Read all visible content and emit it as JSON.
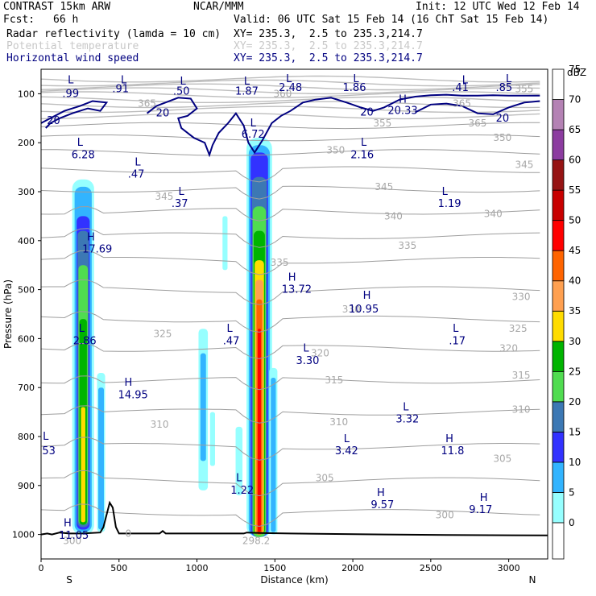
{
  "header": {
    "model": "CONTRAST 15km ARW",
    "org": "NCAR/MMM",
    "init": "Init: 12 UTC Wed 12 Feb 14",
    "fcst_label": "Fcst:",
    "fcst_value": "66 h",
    "valid": "Valid: 06 UTC Sat 15 Feb 14 (16 ChT Sat 15 Feb 14)",
    "fields": [
      {
        "name": "Radar reflectivity (lamda = 10 cm)",
        "xy": "XY= 235.3,  2.5 to 235.3,214.7",
        "color": "#000000"
      },
      {
        "name": "Potential temperature",
        "xy": "XY= 235.3,  2.5 to 235.3,214.7",
        "color": "#c8c8c8"
      },
      {
        "name": "Horizontal wind speed",
        "xy": "XY= 235.3,  2.5 to 235.3,214.7",
        "color": "#000080"
      }
    ]
  },
  "chart_data": {
    "type": "cross-section",
    "xlabel": "Distance (km)",
    "ylabel": "Pressure (hPa)",
    "xlim": [
      0,
      3250
    ],
    "ylim": [
      1050,
      50
    ],
    "x_ticks": [
      0,
      500,
      1000,
      1500,
      2000,
      2500,
      3000
    ],
    "y_ticks": [
      100,
      200,
      300,
      400,
      500,
      600,
      700,
      800,
      900,
      1000
    ],
    "x_end_labels": {
      "left": "S",
      "right": "N"
    },
    "colorbar": {
      "unit": "dBZ",
      "levels": [
        0,
        5,
        10,
        15,
        20,
        25,
        30,
        35,
        40,
        45,
        50,
        55,
        60,
        65,
        70,
        75
      ],
      "colors": [
        "#ffffff",
        "#96ffff",
        "#32b4ff",
        "#3232ff",
        "#3c78b4",
        "#50dc50",
        "#00b400",
        "#ffdc00",
        "#ffa050",
        "#ff6400",
        "#ff0000",
        "#c80000",
        "#961414",
        "#8c3ca0",
        "#b482b4",
        "#ffffff"
      ]
    },
    "theta_labels": [
      {
        "v": "365",
        "x": 680,
        "p": 120
      },
      {
        "v": "365",
        "x": 2700,
        "p": 120
      },
      {
        "v": "360",
        "x": 1550,
        "p": 100
      },
      {
        "v": "355",
        "x": 2190,
        "p": 160
      },
      {
        "v": "355",
        "x": 3100,
        "p": 90
      },
      {
        "v": "365",
        "x": 2800,
        "p": 160
      },
      {
        "v": "350",
        "x": 2960,
        "p": 190
      },
      {
        "v": "350",
        "x": 1890,
        "p": 215
      },
      {
        "v": "345",
        "x": 3100,
        "p": 245
      },
      {
        "v": "345",
        "x": 2200,
        "p": 290
      },
      {
        "v": "345",
        "x": 790,
        "p": 310
      },
      {
        "v": "340",
        "x": 2260,
        "p": 350
      },
      {
        "v": "340",
        "x": 2900,
        "p": 345
      },
      {
        "v": "335",
        "x": 2350,
        "p": 410
      },
      {
        "v": "335",
        "x": 1530,
        "p": 445
      },
      {
        "v": "330",
        "x": 3080,
        "p": 515
      },
      {
        "v": "330",
        "x": 1990,
        "p": 540
      },
      {
        "v": "325",
        "x": 3060,
        "p": 580
      },
      {
        "v": "325",
        "x": 780,
        "p": 590
      },
      {
        "v": "320",
        "x": 3000,
        "p": 620
      },
      {
        "v": "320",
        "x": 1790,
        "p": 630
      },
      {
        "v": "315",
        "x": 3080,
        "p": 675
      },
      {
        "v": "315",
        "x": 1880,
        "p": 685
      },
      {
        "v": "310",
        "x": 3080,
        "p": 745
      },
      {
        "v": "310",
        "x": 1910,
        "p": 770
      },
      {
        "v": "310",
        "x": 760,
        "p": 775
      },
      {
        "v": "305",
        "x": 2960,
        "p": 845
      },
      {
        "v": "305",
        "x": 1820,
        "p": 885
      },
      {
        "v": "300",
        "x": 2590,
        "p": 960
      },
      {
        "v": "300",
        "x": 200,
        "p": 1013
      },
      {
        "v": "298.2",
        "x": 1380,
        "p": 1013
      },
      {
        "v": "0",
        "x": 560,
        "p": 998
      }
    ],
    "wind_labels": [
      {
        "v": ".99",
        "x": 190,
        "p": 100
      },
      {
        "v": ".91",
        "x": 510,
        "p": 90
      },
      {
        "v": ".50",
        "x": 900,
        "p": 95
      },
      {
        "v": "1.87",
        "x": 1320,
        "p": 95
      },
      {
        "v": "2.48",
        "x": 1600,
        "p": 88
      },
      {
        "v": "1.86",
        "x": 2010,
        "p": 88
      },
      {
        "v": ".41",
        "x": 2690,
        "p": 88
      },
      {
        "v": ".85",
        "x": 2970,
        "p": 88
      },
      {
        "v": "20",
        "x": 80,
        "p": 155
      },
      {
        "v": "20",
        "x": 780,
        "p": 140
      },
      {
        "v": "20",
        "x": 2090,
        "p": 138
      },
      {
        "v": "20.33",
        "x": 2320,
        "p": 135
      },
      {
        "v": "20",
        "x": 2960,
        "p": 150
      },
      {
        "v": "6.72",
        "x": 1360,
        "p": 183
      },
      {
        "v": "6.28",
        "x": 270,
        "p": 225
      },
      {
        "v": "2.16",
        "x": 2060,
        "p": 225
      },
      {
        "v": ".47",
        "x": 610,
        "p": 265
      },
      {
        "v": ".37",
        "x": 890,
        "p": 325
      },
      {
        "v": "1.19",
        "x": 2620,
        "p": 325
      },
      {
        "v": "17.69",
        "x": 360,
        "p": 418
      },
      {
        "v": "13.72",
        "x": 1640,
        "p": 500
      },
      {
        "v": "10.95",
        "x": 2070,
        "p": 540
      },
      {
        "v": "2.86",
        "x": 280,
        "p": 605
      },
      {
        "v": ".47",
        "x": 1220,
        "p": 605
      },
      {
        "v": ".17",
        "x": 2670,
        "p": 605
      },
      {
        "v": "3.30",
        "x": 1710,
        "p": 645
      },
      {
        "v": "14.95",
        "x": 590,
        "p": 715
      },
      {
        "v": "3.32",
        "x": 2350,
        "p": 765
      },
      {
        "v": "53",
        "x": 50,
        "p": 830
      },
      {
        "v": "3.42",
        "x": 1960,
        "p": 830
      },
      {
        "v": "11.8",
        "x": 2640,
        "p": 830
      },
      {
        "v": "9.57",
        "x": 2190,
        "p": 940
      },
      {
        "v": "9.17",
        "x": 2820,
        "p": 950
      },
      {
        "v": "1.22",
        "x": 1290,
        "p": 910
      },
      {
        "v": "11.05",
        "x": 210,
        "p": 1002
      }
    ],
    "hl_markers": [
      {
        "v": "L",
        "x": 190,
        "p": 72
      },
      {
        "v": "L",
        "x": 530,
        "p": 72
      },
      {
        "v": "L",
        "x": 910,
        "p": 75
      },
      {
        "v": "L",
        "x": 1320,
        "p": 75
      },
      {
        "v": "L",
        "x": 1590,
        "p": 70
      },
      {
        "v": "L",
        "x": 2020,
        "p": 70
      },
      {
        "v": "L",
        "x": 2720,
        "p": 72
      },
      {
        "v": "L",
        "x": 3000,
        "p": 70
      },
      {
        "v": "H",
        "x": 2320,
        "p": 112
      },
      {
        "v": "L",
        "x": 1360,
        "p": 160
      },
      {
        "v": "L",
        "x": 250,
        "p": 200
      },
      {
        "v": "L",
        "x": 2070,
        "p": 200
      },
      {
        "v": "L",
        "x": 620,
        "p": 240
      },
      {
        "v": "L",
        "x": 900,
        "p": 300
      },
      {
        "v": "L",
        "x": 2590,
        "p": 300
      },
      {
        "v": "H",
        "x": 320,
        "p": 393
      },
      {
        "v": "H",
        "x": 1610,
        "p": 475
      },
      {
        "v": "H",
        "x": 2090,
        "p": 512
      },
      {
        "v": "L",
        "x": 260,
        "p": 580
      },
      {
        "v": "L",
        "x": 1210,
        "p": 580
      },
      {
        "v": "L",
        "x": 2660,
        "p": 580
      },
      {
        "v": "L",
        "x": 1700,
        "p": 620
      },
      {
        "v": "H",
        "x": 560,
        "p": 690
      },
      {
        "v": "L",
        "x": 2340,
        "p": 740
      },
      {
        "v": "L",
        "x": 30,
        "p": 800
      },
      {
        "v": "L",
        "x": 1960,
        "p": 805
      },
      {
        "v": "H",
        "x": 2620,
        "p": 805
      },
      {
        "v": "H",
        "x": 2180,
        "p": 915
      },
      {
        "v": "H",
        "x": 2840,
        "p": 925
      },
      {
        "v": "L",
        "x": 1270,
        "p": 885
      },
      {
        "v": "H",
        "x": 170,
        "p": 977
      }
    ]
  }
}
